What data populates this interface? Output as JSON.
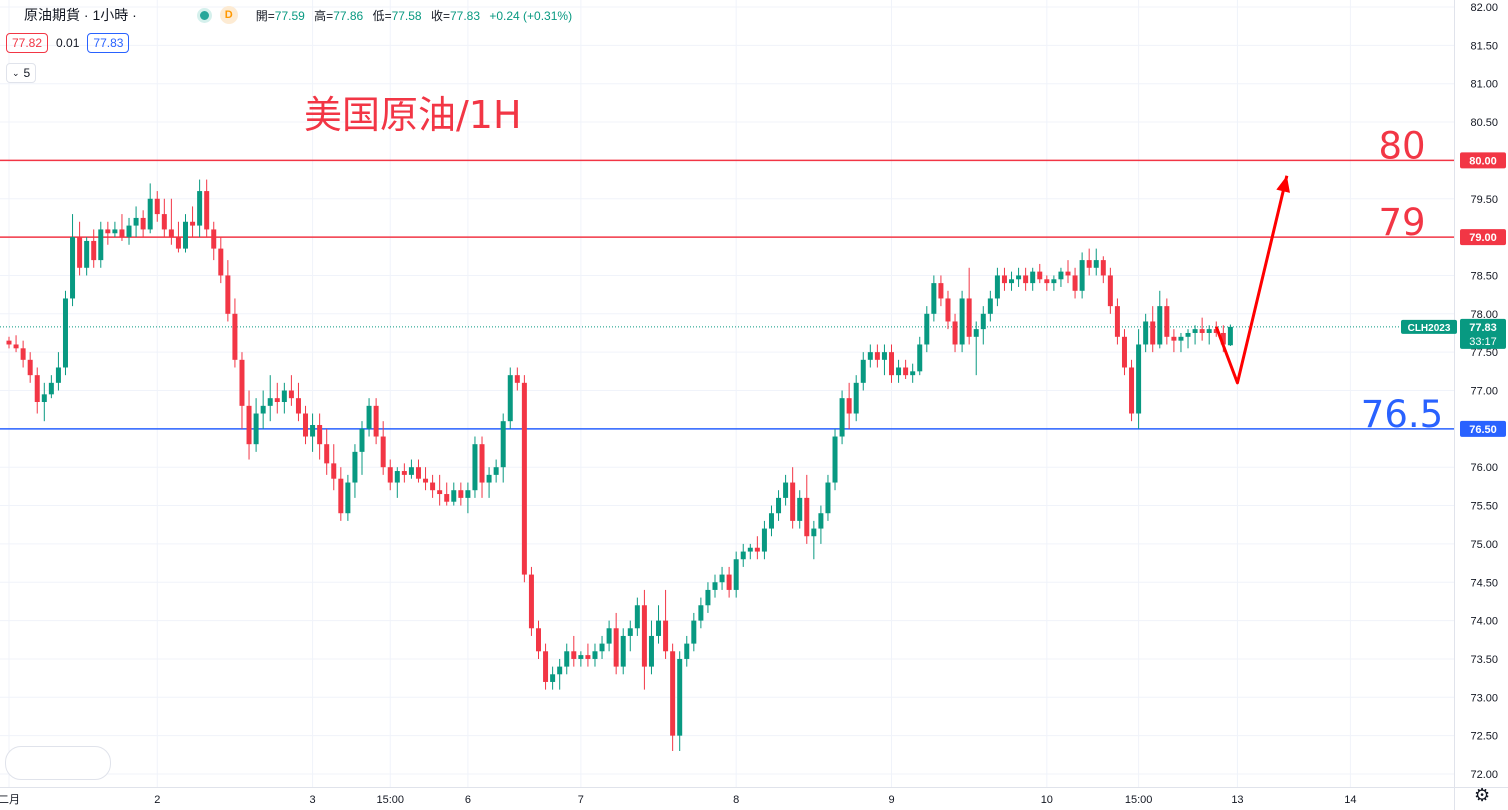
{
  "header": {
    "title": "原油期貨 · 1小時 ·",
    "status_badge": "D",
    "ohlc": [
      {
        "label": "開=",
        "value": "77.59"
      },
      {
        "label": "高=",
        "value": "77.86"
      },
      {
        "label": "低=",
        "value": "77.58"
      },
      {
        "label": "收=",
        "value": "77.83"
      }
    ],
    "change": "+0.24 (+0.31%)"
  },
  "trade": {
    "sell": "77.82",
    "spread": "0.01",
    "buy": "77.83"
  },
  "indicators_toggle": {
    "count": "5"
  },
  "colors": {
    "up": "#089981",
    "down": "#f23645",
    "annotation_red": "#f23645",
    "support_blue": "#2962ff"
  },
  "chart_data": {
    "type": "candlestick",
    "title": "美国原油/1H",
    "symbol": "CLH2023",
    "interval": "1H",
    "ylim": [
      71.9,
      82.1
    ],
    "y_ticks": [
      "82.00",
      "81.50",
      "81.00",
      "80.50",
      "80.00",
      "79.50",
      "79.00",
      "78.50",
      "78.00",
      "77.50",
      "77.00",
      "76.50",
      "76.00",
      "75.50",
      "75.00",
      "74.50",
      "74.00",
      "73.50",
      "73.00",
      "72.50",
      "72.00"
    ],
    "x_ticks": [
      {
        "label": "二月",
        "i": 0
      },
      {
        "label": "2",
        "i": 21
      },
      {
        "label": "3",
        "i": 43
      },
      {
        "label": "15:00",
        "i": 54
      },
      {
        "label": "6",
        "i": 65
      },
      {
        "label": "7",
        "i": 81
      },
      {
        "label": "8",
        "i": 103
      },
      {
        "label": "9",
        "i": 125
      },
      {
        "label": "10",
        "i": 147
      },
      {
        "label": "15:00",
        "i": 160
      },
      {
        "label": "13",
        "i": 174
      },
      {
        "label": "14",
        "i": 190
      }
    ],
    "ohlc": [
      [
        77.65,
        77.7,
        77.55,
        77.6
      ],
      [
        77.6,
        77.72,
        77.5,
        77.55
      ],
      [
        77.55,
        77.65,
        77.3,
        77.4
      ],
      [
        77.4,
        77.5,
        77.1,
        77.2
      ],
      [
        77.2,
        77.3,
        76.7,
        76.85
      ],
      [
        76.85,
        77.1,
        76.6,
        76.95
      ],
      [
        76.95,
        77.2,
        76.9,
        77.1
      ],
      [
        77.1,
        77.5,
        77.0,
        77.3
      ],
      [
        77.3,
        78.3,
        77.2,
        78.2
      ],
      [
        78.2,
        79.3,
        78.1,
        79.0
      ],
      [
        79.0,
        79.2,
        78.5,
        78.6
      ],
      [
        78.6,
        79.0,
        78.5,
        78.95
      ],
      [
        78.95,
        79.1,
        78.6,
        78.7
      ],
      [
        78.7,
        79.2,
        78.6,
        79.1
      ],
      [
        79.1,
        79.2,
        78.9,
        79.05
      ],
      [
        79.05,
        79.2,
        79.0,
        79.1
      ],
      [
        79.1,
        79.3,
        78.95,
        79.0
      ],
      [
        79.0,
        79.25,
        78.9,
        79.15
      ],
      [
        79.15,
        79.4,
        79.0,
        79.25
      ],
      [
        79.25,
        79.35,
        79.0,
        79.1
      ],
      [
        79.1,
        79.7,
        79.05,
        79.5
      ],
      [
        79.5,
        79.6,
        79.2,
        79.3
      ],
      [
        79.3,
        79.5,
        79.0,
        79.1
      ],
      [
        79.1,
        79.5,
        78.9,
        79.0
      ],
      [
        79.0,
        79.2,
        78.8,
        78.85
      ],
      [
        78.85,
        79.3,
        78.8,
        79.2
      ],
      [
        79.2,
        79.4,
        79.0,
        79.15
      ],
      [
        79.15,
        79.75,
        79.0,
        79.6
      ],
      [
        79.6,
        79.75,
        79.0,
        79.1
      ],
      [
        79.1,
        79.2,
        78.7,
        78.85
      ],
      [
        78.85,
        79.0,
        78.4,
        78.5
      ],
      [
        78.5,
        78.7,
        77.9,
        78.0
      ],
      [
        78.0,
        78.2,
        77.3,
        77.4
      ],
      [
        77.4,
        77.5,
        76.5,
        76.8
      ],
      [
        76.8,
        77.0,
        76.1,
        76.3
      ],
      [
        76.3,
        76.9,
        76.2,
        76.7
      ],
      [
        76.7,
        77.0,
        76.5,
        76.8
      ],
      [
        76.8,
        77.2,
        76.6,
        76.9
      ],
      [
        76.9,
        77.1,
        76.7,
        76.85
      ],
      [
        76.85,
        77.1,
        76.7,
        77.0
      ],
      [
        77.0,
        77.2,
        76.8,
        76.9
      ],
      [
        76.9,
        77.1,
        76.6,
        76.7
      ],
      [
        76.7,
        76.8,
        76.3,
        76.4
      ],
      [
        76.4,
        76.7,
        76.2,
        76.55
      ],
      [
        76.55,
        76.7,
        76.1,
        76.3
      ],
      [
        76.3,
        76.5,
        75.9,
        76.05
      ],
      [
        76.05,
        76.3,
        75.7,
        75.85
      ],
      [
        75.85,
        76.0,
        75.3,
        75.4
      ],
      [
        75.4,
        75.9,
        75.3,
        75.8
      ],
      [
        75.8,
        76.3,
        75.6,
        76.2
      ],
      [
        76.2,
        76.6,
        75.9,
        76.5
      ],
      [
        76.5,
        76.9,
        76.4,
        76.8
      ],
      [
        76.8,
        76.9,
        76.3,
        76.4
      ],
      [
        76.4,
        76.6,
        75.9,
        76.0
      ],
      [
        76.0,
        76.1,
        75.7,
        75.8
      ],
      [
        75.8,
        76.0,
        75.6,
        75.95
      ],
      [
        75.95,
        76.05,
        75.8,
        75.9
      ],
      [
        75.9,
        76.1,
        75.85,
        76.0
      ],
      [
        76.0,
        76.1,
        75.8,
        75.85
      ],
      [
        75.85,
        76.0,
        75.7,
        75.8
      ],
      [
        75.8,
        75.9,
        75.6,
        75.7
      ],
      [
        75.7,
        75.9,
        75.5,
        75.65
      ],
      [
        75.65,
        75.8,
        75.5,
        75.55
      ],
      [
        75.55,
        75.8,
        75.5,
        75.7
      ],
      [
        75.7,
        75.8,
        75.5,
        75.6
      ],
      [
        75.6,
        75.8,
        75.4,
        75.7
      ],
      [
        75.7,
        76.4,
        75.6,
        76.3
      ],
      [
        76.3,
        76.4,
        75.6,
        75.8
      ],
      [
        75.8,
        76.0,
        75.6,
        75.9
      ],
      [
        75.9,
        76.1,
        75.8,
        76.0
      ],
      [
        76.0,
        76.7,
        75.8,
        76.6
      ],
      [
        76.6,
        77.3,
        76.5,
        77.2
      ],
      [
        77.2,
        77.3,
        77.0,
        77.1
      ],
      [
        77.1,
        77.2,
        74.5,
        74.6
      ],
      [
        74.6,
        74.7,
        73.8,
        73.9
      ],
      [
        73.9,
        74.0,
        73.5,
        73.6
      ],
      [
        73.6,
        73.7,
        73.1,
        73.2
      ],
      [
        73.2,
        73.4,
        73.1,
        73.3
      ],
      [
        73.3,
        73.5,
        73.1,
        73.4
      ],
      [
        73.4,
        73.7,
        73.3,
        73.6
      ],
      [
        73.6,
        73.8,
        73.4,
        73.5
      ],
      [
        73.5,
        73.6,
        73.4,
        73.55
      ],
      [
        73.55,
        73.7,
        73.4,
        73.5
      ],
      [
        73.5,
        73.7,
        73.4,
        73.6
      ],
      [
        73.6,
        73.8,
        73.5,
        73.7
      ],
      [
        73.7,
        74.0,
        73.6,
        73.9
      ],
      [
        73.9,
        74.1,
        73.3,
        73.4
      ],
      [
        73.4,
        73.9,
        73.3,
        73.8
      ],
      [
        73.8,
        74.0,
        73.6,
        73.9
      ],
      [
        73.9,
        74.3,
        73.8,
        74.2
      ],
      [
        74.2,
        74.4,
        73.1,
        73.4
      ],
      [
        73.4,
        74.0,
        73.3,
        73.8
      ],
      [
        73.8,
        74.2,
        73.7,
        74.0
      ],
      [
        74.0,
        74.4,
        73.5,
        73.6
      ],
      [
        73.6,
        73.7,
        72.3,
        72.5
      ],
      [
        72.5,
        73.6,
        72.3,
        73.5
      ],
      [
        73.5,
        73.8,
        73.4,
        73.7
      ],
      [
        73.7,
        74.1,
        73.6,
        74.0
      ],
      [
        74.0,
        74.3,
        73.9,
        74.2
      ],
      [
        74.2,
        74.5,
        74.1,
        74.4
      ],
      [
        74.4,
        74.6,
        74.3,
        74.5
      ],
      [
        74.5,
        74.7,
        74.4,
        74.6
      ],
      [
        74.6,
        74.7,
        74.3,
        74.4
      ],
      [
        74.4,
        74.9,
        74.3,
        74.8
      ],
      [
        74.8,
        75.0,
        74.7,
        74.9
      ],
      [
        74.9,
        75.0,
        74.8,
        74.95
      ],
      [
        74.95,
        75.1,
        74.8,
        74.9
      ],
      [
        74.9,
        75.3,
        74.8,
        75.2
      ],
      [
        75.2,
        75.5,
        75.1,
        75.4
      ],
      [
        75.4,
        75.7,
        75.3,
        75.6
      ],
      [
        75.6,
        75.9,
        75.5,
        75.8
      ],
      [
        75.8,
        76.0,
        75.2,
        75.3
      ],
      [
        75.3,
        75.7,
        75.2,
        75.6
      ],
      [
        75.6,
        75.9,
        75.0,
        75.1
      ],
      [
        75.1,
        75.3,
        74.8,
        75.2
      ],
      [
        75.2,
        75.5,
        75.0,
        75.4
      ],
      [
        75.4,
        75.9,
        75.3,
        75.8
      ],
      [
        75.8,
        76.5,
        75.7,
        76.4
      ],
      [
        76.4,
        77.0,
        76.3,
        76.9
      ],
      [
        76.9,
        77.1,
        76.5,
        76.7
      ],
      [
        76.7,
        77.2,
        76.6,
        77.1
      ],
      [
        77.1,
        77.5,
        77.0,
        77.4
      ],
      [
        77.4,
        77.6,
        77.3,
        77.5
      ],
      [
        77.5,
        77.6,
        77.3,
        77.4
      ],
      [
        77.4,
        77.6,
        77.2,
        77.5
      ],
      [
        77.5,
        77.6,
        77.1,
        77.2
      ],
      [
        77.2,
        77.4,
        77.1,
        77.3
      ],
      [
        77.3,
        77.4,
        77.15,
        77.2
      ],
      [
        77.2,
        77.35,
        77.1,
        77.25
      ],
      [
        77.25,
        77.7,
        77.2,
        77.6
      ],
      [
        77.6,
        78.1,
        77.5,
        78.0
      ],
      [
        78.0,
        78.5,
        77.9,
        78.4
      ],
      [
        78.4,
        78.5,
        78.1,
        78.2
      ],
      [
        78.2,
        78.3,
        77.8,
        77.9
      ],
      [
        77.9,
        78.0,
        77.5,
        77.6
      ],
      [
        77.6,
        78.3,
        77.5,
        78.2
      ],
      [
        78.2,
        78.6,
        77.6,
        77.7
      ],
      [
        77.7,
        77.9,
        77.2,
        77.8
      ],
      [
        77.8,
        78.1,
        77.6,
        78.0
      ],
      [
        78.0,
        78.3,
        77.9,
        78.2
      ],
      [
        78.2,
        78.6,
        78.1,
        78.5
      ],
      [
        78.5,
        78.6,
        78.3,
        78.4
      ],
      [
        78.4,
        78.55,
        78.3,
        78.45
      ],
      [
        78.45,
        78.6,
        78.35,
        78.5
      ],
      [
        78.5,
        78.6,
        78.3,
        78.4
      ],
      [
        78.4,
        78.6,
        78.3,
        78.55
      ],
      [
        78.55,
        78.65,
        78.4,
        78.45
      ],
      [
        78.45,
        78.5,
        78.3,
        78.4
      ],
      [
        78.4,
        78.5,
        78.3,
        78.45
      ],
      [
        78.45,
        78.6,
        78.35,
        78.55
      ],
      [
        78.55,
        78.7,
        78.4,
        78.5
      ],
      [
        78.5,
        78.6,
        78.2,
        78.3
      ],
      [
        78.3,
        78.8,
        78.2,
        78.7
      ],
      [
        78.7,
        78.85,
        78.5,
        78.6
      ],
      [
        78.6,
        78.85,
        78.5,
        78.7
      ],
      [
        78.7,
        78.75,
        78.4,
        78.5
      ],
      [
        78.5,
        78.6,
        78.0,
        78.1
      ],
      [
        78.1,
        78.2,
        77.6,
        77.7
      ],
      [
        77.7,
        77.8,
        77.2,
        77.3
      ],
      [
        77.3,
        77.4,
        76.6,
        76.7
      ],
      [
        76.7,
        77.8,
        76.5,
        77.6
      ],
      [
        77.6,
        78.0,
        77.5,
        77.9
      ],
      [
        77.9,
        78.1,
        77.5,
        77.6
      ],
      [
        77.6,
        78.3,
        77.55,
        78.1
      ],
      [
        78.1,
        78.2,
        77.6,
        77.7
      ],
      [
        77.7,
        77.8,
        77.5,
        77.65
      ],
      [
        77.65,
        77.75,
        77.5,
        77.7
      ],
      [
        77.7,
        77.8,
        77.55,
        77.75
      ],
      [
        77.75,
        77.85,
        77.6,
        77.8
      ],
      [
        77.8,
        77.95,
        77.65,
        77.75
      ],
      [
        77.75,
        77.85,
        77.6,
        77.8
      ],
      [
        77.8,
        77.9,
        77.7,
        77.75
      ],
      [
        77.75,
        77.85,
        77.5,
        77.6
      ],
      [
        77.59,
        77.86,
        77.58,
        77.83
      ]
    ],
    "h_lines": [
      {
        "value": 80.0,
        "label": "80.00",
        "color": "#f23645"
      },
      {
        "value": 79.0,
        "label": "79.00",
        "color": "#f23645"
      },
      {
        "value": 76.5,
        "label": "76.50",
        "color": "#2962ff"
      }
    ],
    "annotations": [
      {
        "text": "80",
        "y": 80.0,
        "color": "#f23645"
      },
      {
        "text": "79",
        "y": 79.0,
        "color": "#f23645"
      },
      {
        "text": "76.5",
        "y": 76.5,
        "color": "#2962ff"
      }
    ],
    "last_price": {
      "value": 77.83,
      "label": "77.83",
      "countdown": "33:17"
    },
    "arrow_path": [
      [
        171,
        77.83
      ],
      [
        174,
        77.1
      ],
      [
        181,
        79.8
      ]
    ]
  }
}
